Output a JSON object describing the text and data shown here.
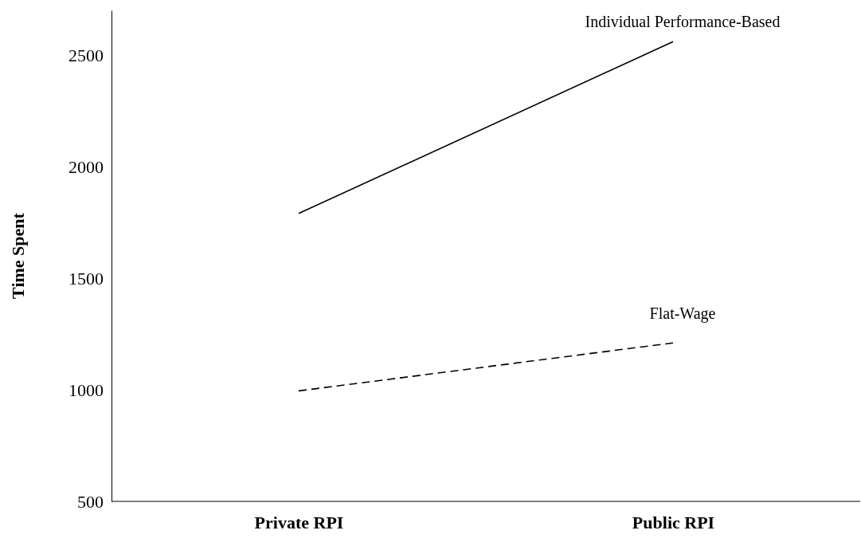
{
  "chart_data": {
    "type": "line",
    "ylabel": "Time Spent",
    "categories": [
      "Private RPI",
      "Public RPI"
    ],
    "series": [
      {
        "name": "Individual Performance-Based",
        "color": "#000000",
        "line_style": "solid",
        "values": [
          1790,
          2560
        ]
      },
      {
        "name": "Flat-Wage",
        "color": "#000000",
        "line_style": "dashed",
        "values": [
          995,
          1210
        ]
      }
    ],
    "ylim": [
      500,
      2700
    ],
    "yticks": [
      500,
      1000,
      1500,
      2000,
      2500
    ],
    "grid": false,
    "legend": false,
    "marker": "none"
  }
}
